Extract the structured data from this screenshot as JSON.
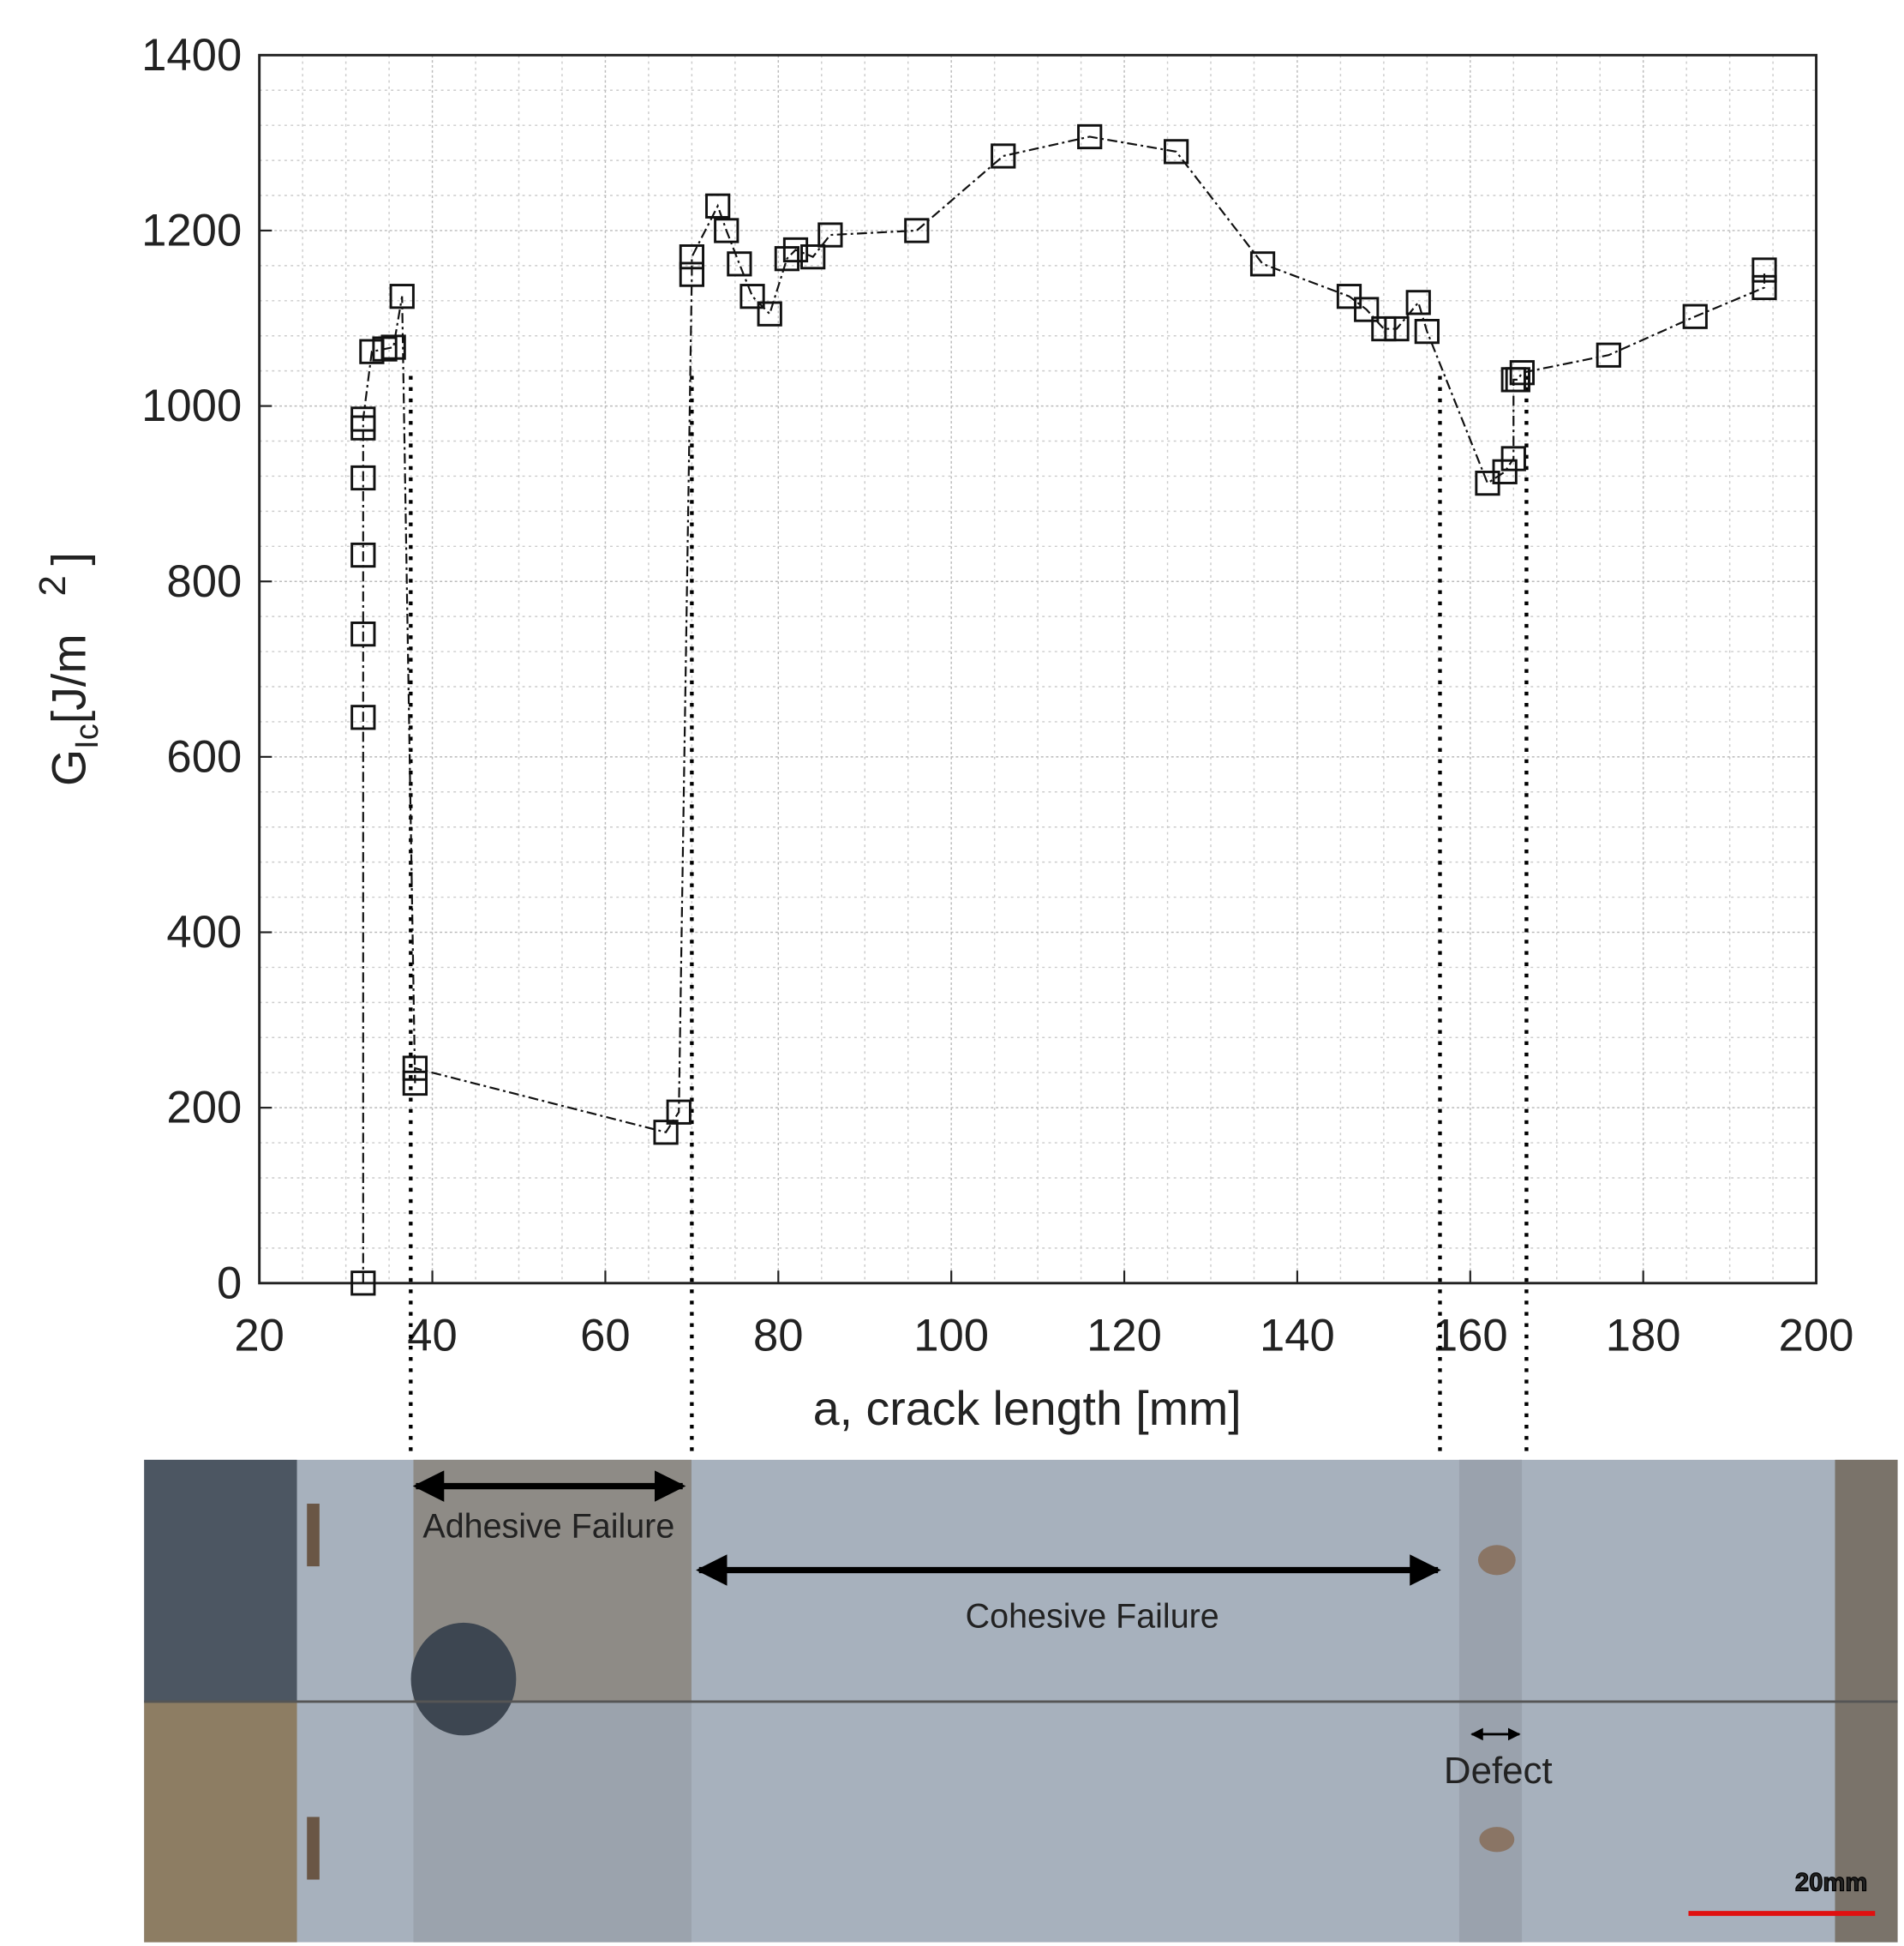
{
  "chart_data": {
    "type": "line",
    "xlabel": "a, crack length [mm]",
    "ylabel": [
      "G",
      "Ic",
      "[J/m",
      "2",
      "]"
    ],
    "x": [
      32,
      32,
      32,
      32,
      32,
      32,
      32,
      33,
      34.5,
      35.5,
      36.5,
      38,
      38,
      67,
      68.5,
      70,
      70,
      73,
      74,
      75.5,
      77,
      79,
      81,
      82,
      84,
      86,
      96,
      106,
      116,
      126,
      136,
      146,
      148,
      150,
      151.5,
      154,
      155,
      162,
      164,
      165,
      165,
      165.5,
      166,
      176,
      186,
      194,
      194
    ],
    "series": [
      {
        "color": "#111111",
        "values": [
          0,
          645,
          740,
          830,
          918,
          975,
          985,
          1062,
          1065,
          1067,
          1125,
          228,
          245,
          172,
          195,
          1150,
          1170,
          1228,
          1200,
          1162,
          1125,
          1105,
          1168,
          1178,
          1170,
          1195,
          1200,
          1285,
          1307,
          1290,
          1162,
          1125,
          1110,
          1088,
          1088,
          1118,
          1085,
          912,
          925,
          940,
          1030,
          1030,
          1038,
          1058,
          1102,
          1135,
          1155
        ]
      }
    ],
    "xlim": [
      20,
      200
    ],
    "xticks": [
      20,
      40,
      60,
      80,
      100,
      120,
      140,
      160,
      180,
      200
    ],
    "ylim": [
      0,
      1400
    ],
    "yticks": [
      0,
      200,
      400,
      600,
      800,
      1000,
      1200,
      1400
    ],
    "grid": true,
    "minor_grid": true,
    "dividers": [
      37.5,
      70,
      156.5,
      166.5
    ],
    "photo": {
      "adhesive": "Adhesive Failure",
      "cohesive": "Cohesive Failure",
      "defect": "Defect",
      "scale": "20mm"
    }
  }
}
